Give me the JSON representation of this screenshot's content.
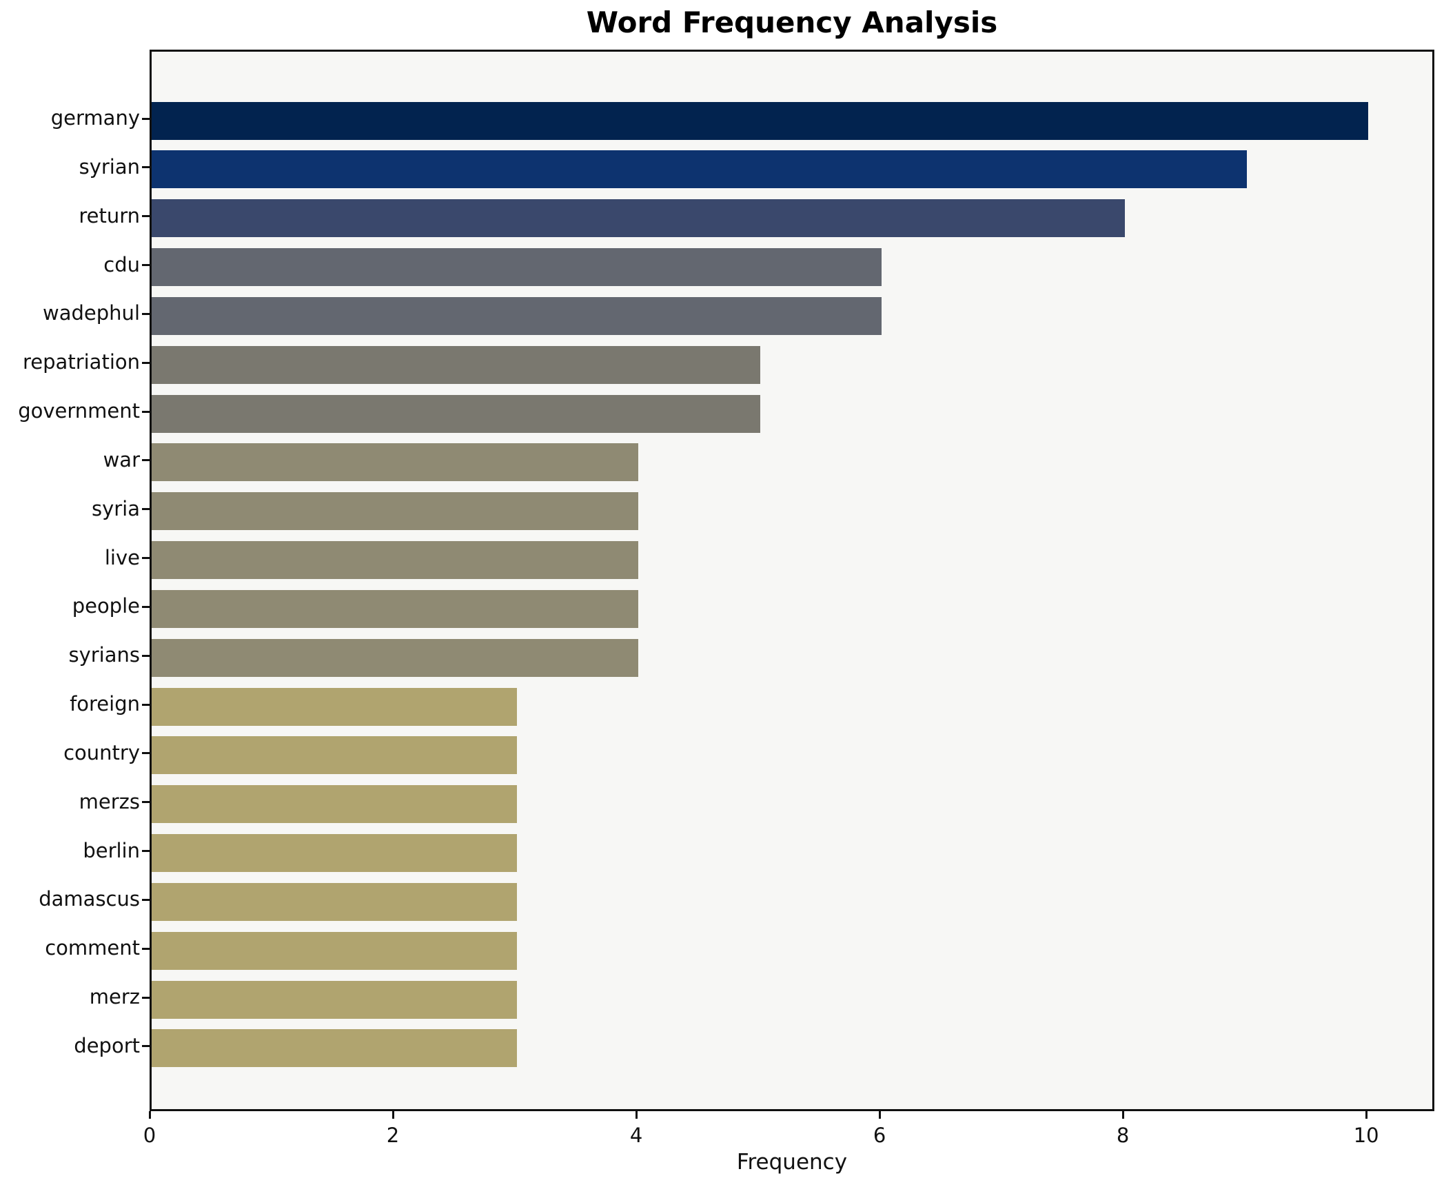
{
  "chart_data": {
    "type": "bar",
    "orientation": "horizontal",
    "title": "Word Frequency Analysis",
    "xlabel": "Frequency",
    "ylabel": "",
    "categories": [
      "germany",
      "syrian",
      "return",
      "cdu",
      "wadephul",
      "repatriation",
      "government",
      "war",
      "syria",
      "live",
      "people",
      "syrians",
      "foreign",
      "country",
      "merzs",
      "berlin",
      "damascus",
      "comment",
      "merz",
      "deport"
    ],
    "values": [
      10,
      9,
      8,
      6,
      6,
      5,
      5,
      4,
      4,
      4,
      4,
      4,
      3,
      3,
      3,
      3,
      3,
      3,
      3,
      3
    ],
    "bar_colors": [
      "#02234f",
      "#0d336f",
      "#3a486c",
      "#636770",
      "#636770",
      "#7a786f",
      "#7a786f",
      "#8f8a73",
      "#8f8a73",
      "#8f8a73",
      "#8f8a73",
      "#8f8a73",
      "#b0a46f",
      "#b0a46f",
      "#b0a46f",
      "#b0a46f",
      "#b0a46f",
      "#b0a46f",
      "#b0a46f",
      "#b0a46f"
    ],
    "x_ticks": [
      0,
      2,
      4,
      6,
      8,
      10
    ],
    "xlim": [
      0,
      10.56
    ],
    "grid": false,
    "legend": "none",
    "plot_background": "#f7f7f5",
    "figure_background": "#ffffff",
    "spine_color": "#101010",
    "text_color": "#111111"
  }
}
